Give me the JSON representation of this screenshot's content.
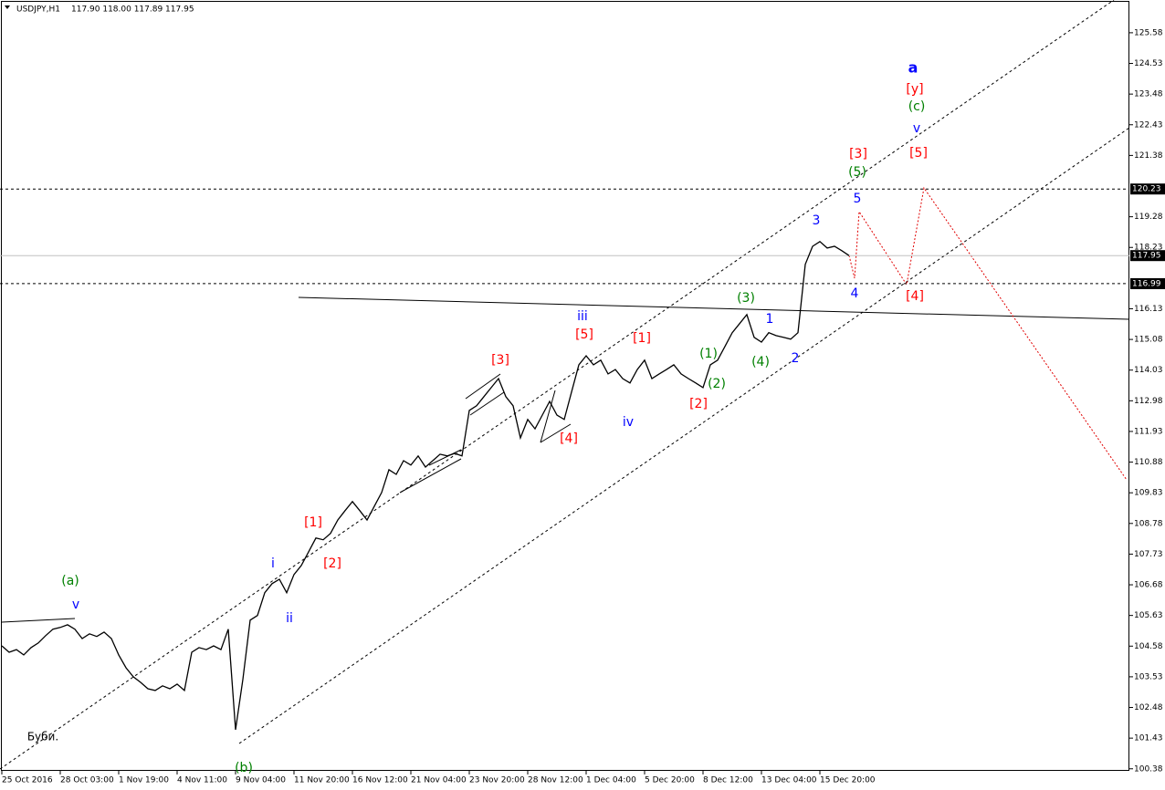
{
  "chart_data": {
    "type": "line",
    "title": "USDJPY,H1",
    "quote": "117.90 118.00 117.89 117.95",
    "color": "#000000",
    "categories": [
      "25 Oct 2016",
      null,
      null,
      null,
      null,
      null,
      null,
      null,
      "28 Oct 03:00",
      null,
      null,
      null,
      null,
      null,
      null,
      null,
      "1 Nov 19:00",
      null,
      null,
      null,
      null,
      null,
      null,
      null,
      "4 Nov 11:00",
      null,
      null,
      null,
      null,
      null,
      null,
      null,
      "9 Nov 04:00",
      null,
      null,
      null,
      null,
      null,
      null,
      null,
      "11 Nov 20:00",
      null,
      null,
      null,
      null,
      null,
      null,
      null,
      "16 Nov 12:00",
      null,
      null,
      null,
      null,
      null,
      null,
      null,
      "21 Nov 04:00",
      null,
      null,
      null,
      null,
      null,
      null,
      null,
      "23 Nov 20:00",
      null,
      null,
      null,
      null,
      null,
      null,
      null,
      "28 Nov 12:00",
      null,
      null,
      null,
      null,
      null,
      null,
      null,
      "1 Dec 04:00",
      null,
      null,
      null,
      null,
      null,
      null,
      null,
      "5 Dec 20:00",
      null,
      null,
      null,
      null,
      null,
      null,
      null,
      "8 Dec 12:00",
      null,
      null,
      null,
      null,
      null,
      null,
      null,
      "13 Dec 04:00",
      null,
      null,
      null,
      null,
      null,
      null,
      null,
      "15 Dec 20:00",
      null,
      null,
      null,
      null
    ],
    "values": [
      104.59,
      104.37,
      104.46,
      104.28,
      104.53,
      104.69,
      104.94,
      105.16,
      105.22,
      105.31,
      105.16,
      104.84,
      105.0,
      104.91,
      105.06,
      104.84,
      104.28,
      103.84,
      103.53,
      103.34,
      103.12,
      103.06,
      103.22,
      103.12,
      103.28,
      103.06,
      104.37,
      104.53,
      104.46,
      104.59,
      104.46,
      105.16,
      101.72,
      103.44,
      105.47,
      105.63,
      106.41,
      106.72,
      106.87,
      106.41,
      107.03,
      107.34,
      107.81,
      108.28,
      108.22,
      108.44,
      108.9,
      109.22,
      109.53,
      109.22,
      108.9,
      109.37,
      109.84,
      110.62,
      110.46,
      110.93,
      110.78,
      111.09,
      110.71,
      110.93,
      111.15,
      111.09,
      111.18,
      111.09,
      112.65,
      112.81,
      113.12,
      113.43,
      113.74,
      113.12,
      112.81,
      111.71,
      112.34,
      112.02,
      112.49,
      112.96,
      112.49,
      112.34,
      113.28,
      114.21,
      114.52,
      114.21,
      114.37,
      113.9,
      114.05,
      113.74,
      113.59,
      114.05,
      114.37,
      113.74,
      113.9,
      114.05,
      114.21,
      113.9,
      113.74,
      113.59,
      113.43,
      114.21,
      114.37,
      114.84,
      115.31,
      115.62,
      115.93,
      115.15,
      114.99,
      115.31,
      115.21,
      115.15,
      115.09,
      115.31,
      117.65,
      118.27,
      118.43,
      118.21,
      118.27,
      118.12,
      117.95
    ],
    "ylim": [
      100.31,
      126.67
    ],
    "yticks": [
      125.58,
      124.53,
      123.48,
      122.43,
      121.38,
      119.28,
      118.23,
      116.13,
      115.08,
      114.03,
      112.98,
      111.93,
      110.88,
      109.83,
      108.78,
      107.73,
      106.68,
      105.63,
      104.58,
      103.53,
      102.48,
      101.43,
      100.38
    ],
    "levels": [
      {
        "value": 120.23,
        "style": "dashed",
        "color": "#000000"
      },
      {
        "value": 117.95,
        "style": "solid",
        "color": "#c0c0c0"
      },
      {
        "value": 116.99,
        "style": "dashed",
        "color": "#000000"
      }
    ],
    "annotations": [
      {
        "text": "(a)",
        "color": "#008000"
      },
      {
        "text": "v",
        "color": "#0000ff"
      },
      {
        "text": "(b)",
        "color": "#008000"
      },
      {
        "text": "i",
        "color": "#0000ff"
      },
      {
        "text": "ii",
        "color": "#0000ff"
      },
      {
        "text": "[1]",
        "color": "#ff0000"
      },
      {
        "text": "[2]",
        "color": "#ff0000"
      },
      {
        "text": "[3]",
        "color": "#ff0000"
      },
      {
        "text": "[4]",
        "color": "#ff0000"
      },
      {
        "text": "iii",
        "color": "#0000ff"
      },
      {
        "text": "[5]",
        "color": "#ff0000"
      },
      {
        "text": "iv",
        "color": "#0000ff"
      },
      {
        "text": "[1]",
        "color": "#ff0000"
      },
      {
        "text": "[2]",
        "color": "#ff0000"
      },
      {
        "text": "(1)",
        "color": "#008000"
      },
      {
        "text": "(2)",
        "color": "#008000"
      },
      {
        "text": "(3)",
        "color": "#008000"
      },
      {
        "text": "(4)",
        "color": "#008000"
      },
      {
        "text": "1",
        "color": "#0000ff"
      },
      {
        "text": "2",
        "color": "#0000ff"
      },
      {
        "text": "3",
        "color": "#0000ff"
      },
      {
        "text": "4",
        "color": "#0000ff"
      },
      {
        "text": "5",
        "color": "#0000ff"
      },
      {
        "text": "(5)",
        "color": "#008000"
      },
      {
        "text": "[3]",
        "color": "#ff0000"
      },
      {
        "text": "[4]",
        "color": "#ff0000"
      },
      {
        "text": "[5]",
        "color": "#ff0000"
      },
      {
        "text": "v",
        "color": "#0000ff"
      },
      {
        "text": "(c)",
        "color": "#008000"
      },
      {
        "text": "[y]",
        "color": "#ff0000"
      },
      {
        "text": "a",
        "color": "#0000ff",
        "bold": true
      },
      {
        "text": "Буби.",
        "color": "#000000"
      }
    ]
  }
}
